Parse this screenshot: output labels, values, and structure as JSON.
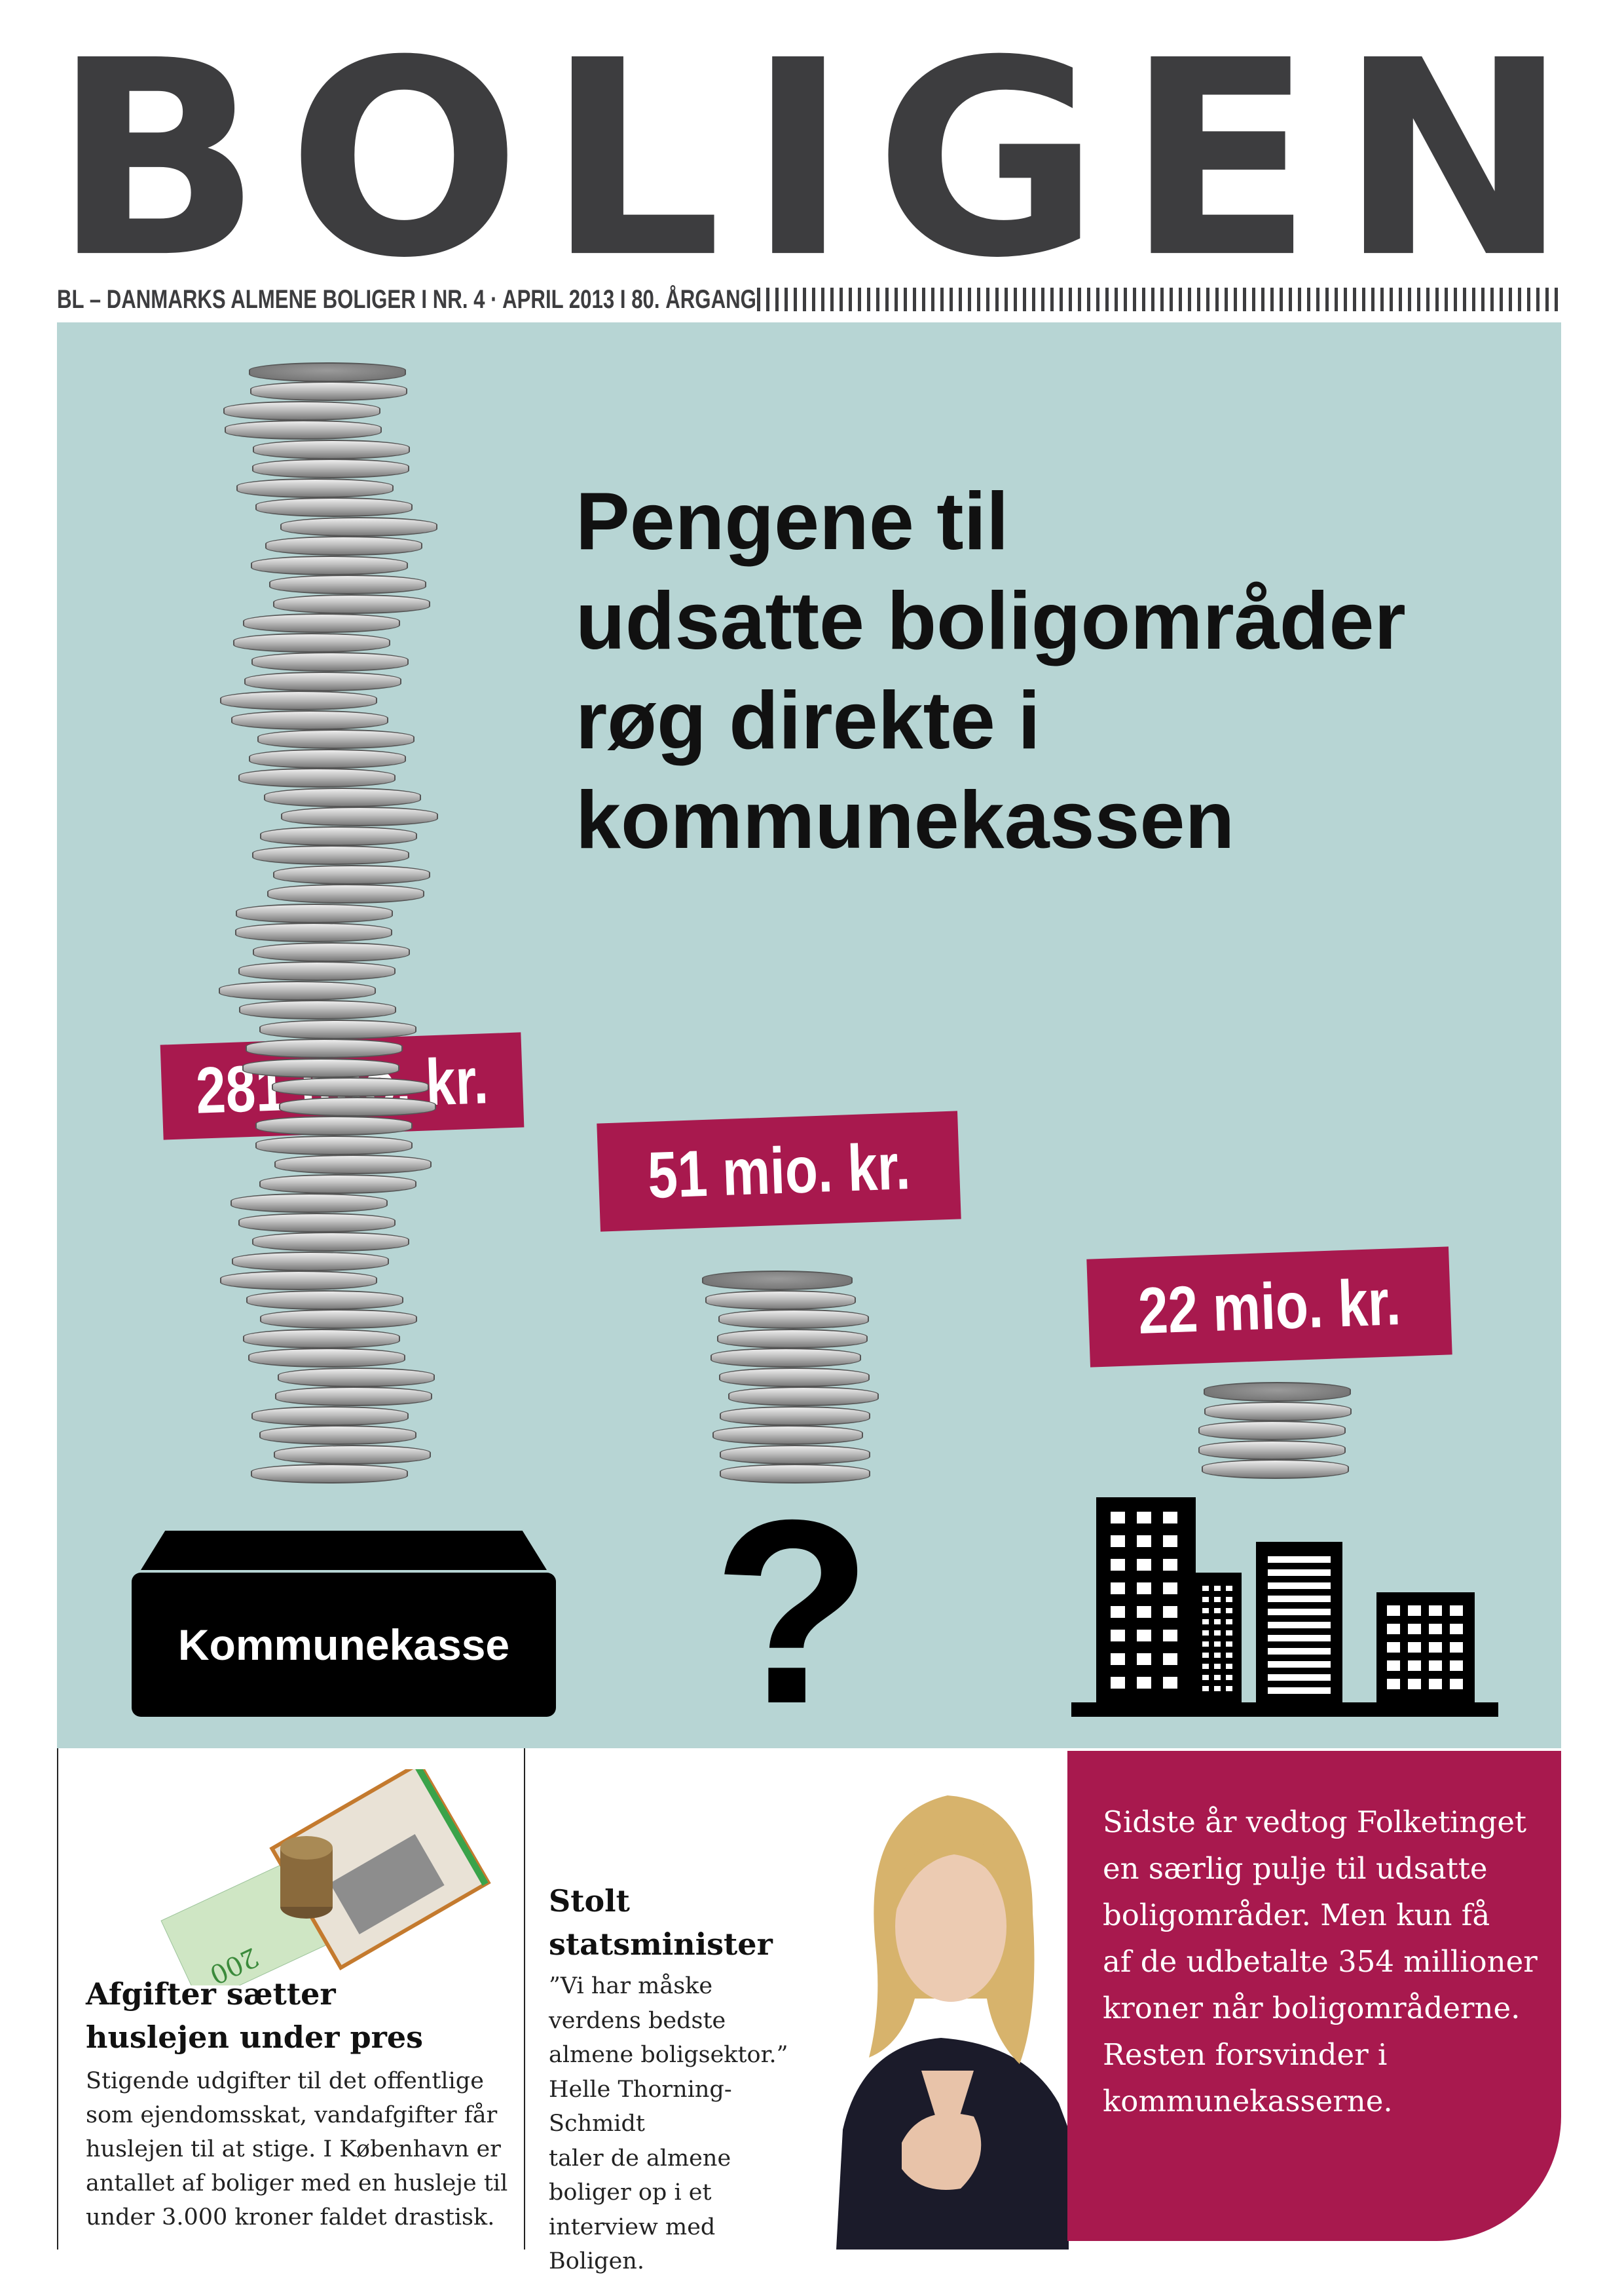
{
  "masthead": {
    "title_letters": [
      "B",
      "O",
      "L",
      "I",
      "G",
      "E",
      "N"
    ],
    "subline": "BL – DANMARKS ALMENE BOLIGER I NR. 4 · APRIL 2013 I 80. ÅRGANG",
    "text_color": "#3d3d3f"
  },
  "cover": {
    "background_color": "#b7d5d4",
    "accent_color": "#a8194e",
    "headline_lines": [
      "Pengene til",
      "udsatte boligområder",
      "røg direkte i",
      "kommunekassen"
    ],
    "amounts": [
      {
        "label": "281 mio. kr.",
        "value_mio_kr": 281,
        "destination": "Kommunekasse"
      },
      {
        "label": "51 mio. kr.",
        "value_mio_kr": 51,
        "destination": "?"
      },
      {
        "label": "22 mio. kr.",
        "value_mio_kr": 22,
        "destination": "buildings-icon"
      }
    ],
    "kasse_label": "Kommunekasse",
    "question_mark": "?"
  },
  "articles": [
    {
      "heading_lines": [
        "Afgifter sætter",
        "huslejen under pres"
      ],
      "body_lines": [
        "Stigende udgifter til det offentlige",
        "som ejendomsskat, vandafgifter får",
        "huslejen til at stige. I København er",
        "antallet af boliger med en husleje til",
        "under 3.000 kroner faldet drastisk."
      ]
    },
    {
      "heading_lines": [
        "Stolt",
        "statsminister"
      ],
      "body_lines": [
        "”Vi har måske",
        "verdens bedste",
        "almene boligsektor.”",
        "Helle Thorning-Schmidt",
        "taler de almene",
        "boliger op i et",
        "interview med",
        "Boligen."
      ]
    }
  ],
  "promo": {
    "lines": [
      "Sidste år vedtog Folketinget",
      "en særlig pulje til udsatte",
      "boligområder. Men kun få",
      "af de udbetalte 354 millioner",
      "kroner når boligområderne.",
      "Resten forsvinder i",
      "kommunekasserne."
    ]
  }
}
